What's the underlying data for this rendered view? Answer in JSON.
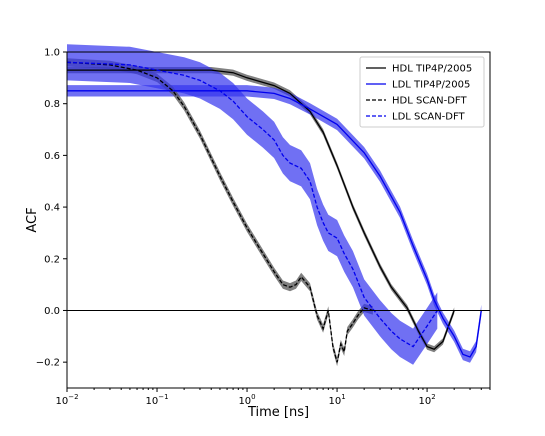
{
  "chart_data": {
    "type": "line",
    "xlabel": "Time [ns]",
    "ylabel": "ACF",
    "xscale": "log",
    "xlim": [
      0.01,
      500
    ],
    "ylim": [
      -0.3,
      1.0
    ],
    "xticks": [
      {
        "value": 0.01,
        "base": "10",
        "exp": "−2"
      },
      {
        "value": 0.1,
        "base": "10",
        "exp": "−1"
      },
      {
        "value": 1,
        "base": "10",
        "exp": "0"
      },
      {
        "value": 10,
        "base": "10",
        "exp": "1"
      },
      {
        "value": 100,
        "base": "10",
        "exp": "2"
      }
    ],
    "yticks": [
      "−0.2",
      "0.0",
      "0.2",
      "0.4",
      "0.6",
      "0.8",
      "1.0"
    ],
    "ytick_values": [
      -0.2,
      0.0,
      0.2,
      0.4,
      0.6,
      0.8,
      1.0
    ],
    "reference_line_y": 0.0,
    "legend_position": "upper right",
    "colors": {
      "HDL": "#000000",
      "LDL": "#0000ee",
      "HDL_band": "#555555",
      "LDL_band": "#3333ee"
    },
    "series": [
      {
        "name": "HDL TIP4P/2005",
        "style": "solid",
        "color": "#000000",
        "band_width": 0.012,
        "x": [
          0.01,
          0.05,
          0.2,
          0.4,
          0.7,
          1,
          2,
          3,
          5,
          7,
          10,
          15,
          20,
          30,
          40,
          60,
          80,
          100,
          120,
          150,
          200
        ],
        "y": [
          0.93,
          0.93,
          0.93,
          0.93,
          0.92,
          0.9,
          0.87,
          0.84,
          0.77,
          0.69,
          0.56,
          0.4,
          0.3,
          0.17,
          0.09,
          0.01,
          -0.08,
          -0.14,
          -0.15,
          -0.12,
          0.0
        ]
      },
      {
        "name": "LDL TIP4P/2005",
        "style": "solid",
        "color": "#0000ee",
        "band_width": 0.022,
        "x": [
          0.01,
          0.05,
          0.2,
          0.5,
          1,
          2,
          3,
          5,
          10,
          20,
          30,
          50,
          70,
          100,
          120,
          150,
          200,
          250,
          300,
          350,
          400
        ],
        "y": [
          0.85,
          0.85,
          0.85,
          0.85,
          0.85,
          0.84,
          0.82,
          0.78,
          0.72,
          0.61,
          0.52,
          0.38,
          0.25,
          0.12,
          0.04,
          -0.03,
          -0.1,
          -0.17,
          -0.18,
          -0.14,
          0.0
        ]
      },
      {
        "name": "HDL SCAN-DFT",
        "style": "dashed",
        "color": "#000000",
        "band_width": 0.016,
        "x": [
          0.01,
          0.03,
          0.06,
          0.1,
          0.15,
          0.2,
          0.3,
          0.5,
          0.7,
          1,
          1.5,
          2,
          2.5,
          3,
          3.5,
          4,
          5,
          6,
          7,
          8,
          9,
          10,
          11,
          12,
          13,
          15,
          17,
          20,
          25
        ],
        "y": [
          0.96,
          0.95,
          0.93,
          0.9,
          0.85,
          0.79,
          0.68,
          0.52,
          0.42,
          0.32,
          0.22,
          0.15,
          0.1,
          0.09,
          0.1,
          0.13,
          0.09,
          -0.02,
          -0.07,
          0.0,
          -0.14,
          -0.2,
          -0.13,
          -0.16,
          -0.08,
          -0.05,
          -0.02,
          0.01,
          0.0
        ]
      },
      {
        "name": "LDL SCAN-DFT",
        "style": "dashed",
        "color": "#0000ee",
        "band_width": 0.07,
        "x": [
          0.01,
          0.05,
          0.1,
          0.2,
          0.3,
          0.5,
          0.7,
          1,
          1.5,
          2,
          2.5,
          3,
          4,
          5,
          6,
          7,
          8,
          10,
          12,
          15,
          20,
          30,
          40,
          50,
          70,
          100,
          130
        ],
        "y": [
          0.96,
          0.95,
          0.93,
          0.91,
          0.89,
          0.85,
          0.81,
          0.75,
          0.7,
          0.66,
          0.6,
          0.57,
          0.55,
          0.5,
          0.4,
          0.34,
          0.3,
          0.28,
          0.22,
          0.16,
          0.05,
          -0.03,
          -0.08,
          -0.11,
          -0.14,
          -0.06,
          0.0
        ]
      }
    ]
  }
}
